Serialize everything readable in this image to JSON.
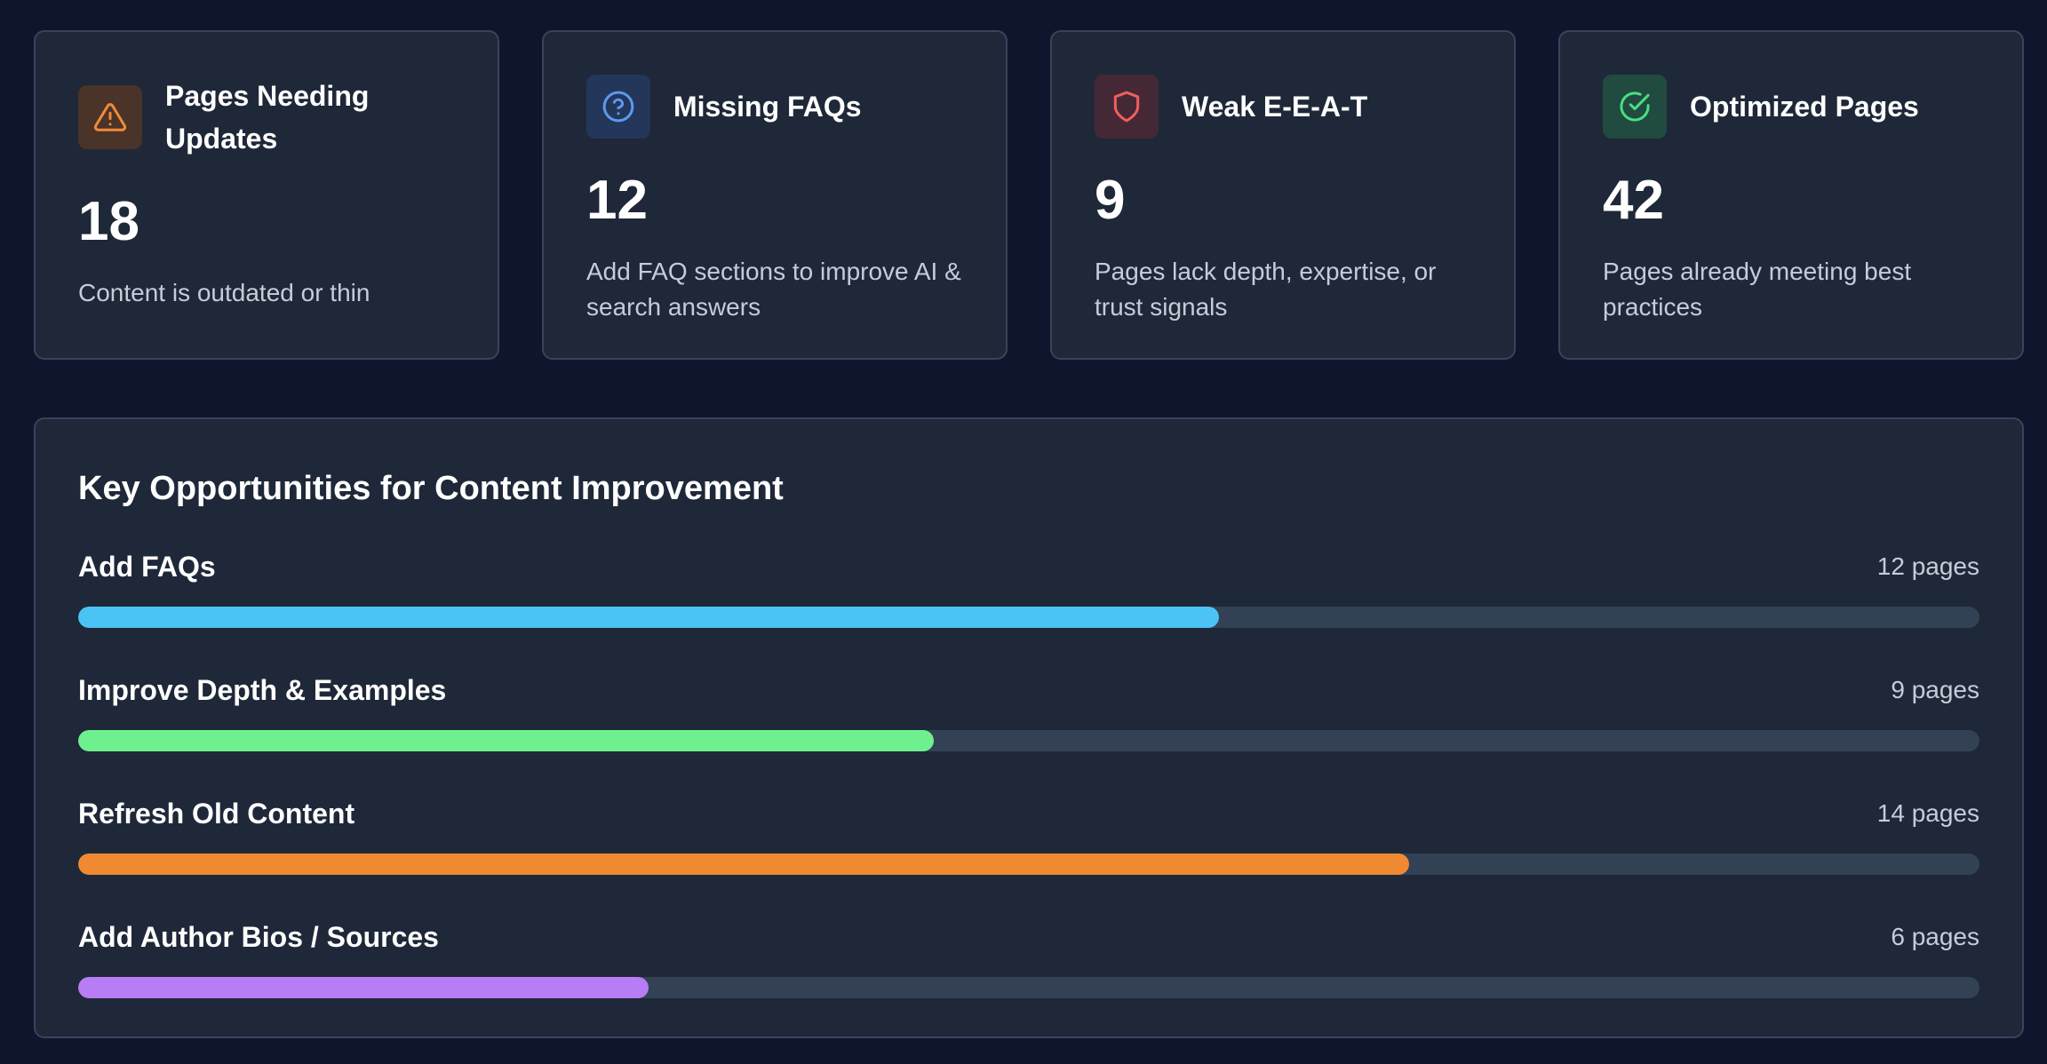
{
  "stats": [
    {
      "icon": "warning-triangle-icon",
      "title": "Pages Needing Updates",
      "value": "18",
      "description": "Content is outdated or thin",
      "icon_color": "#f18a36",
      "icon_bg": "#4a3329"
    },
    {
      "icon": "question-circle-icon",
      "title": "Missing FAQs",
      "value": "12",
      "description": "Add FAQ sections to improve AI & search answers",
      "icon_color": "#5b9bf0",
      "icon_bg": "#24365a"
    },
    {
      "icon": "shield-icon",
      "title": "Weak E-E-A-T",
      "value": "9",
      "description": "Pages lack depth, expertise, or trust signals",
      "icon_color": "#ef5f5f",
      "icon_bg": "#452836"
    },
    {
      "icon": "check-circle-icon",
      "title": "Optimized Pages",
      "value": "42",
      "description": "Pages already meeting best practices",
      "icon_color": "#4ade80",
      "icon_bg": "#214a40"
    }
  ],
  "opportunities": {
    "title": "Key Opportunities for Content Improvement",
    "items": [
      {
        "label": "Add FAQs",
        "count_label": "12 pages",
        "progress": 0.6,
        "color": "#4cc3f5"
      },
      {
        "label": "Improve Depth & Examples",
        "count_label": "9 pages",
        "progress": 0.45,
        "color": "#6ff08f"
      },
      {
        "label": "Refresh Old Content",
        "count_label": "14 pages",
        "progress": 0.7,
        "color": "#f08a32"
      },
      {
        "label": "Add Author Bios / Sources",
        "count_label": "6 pages",
        "progress": 0.3,
        "color": "#b87df5"
      }
    ]
  }
}
